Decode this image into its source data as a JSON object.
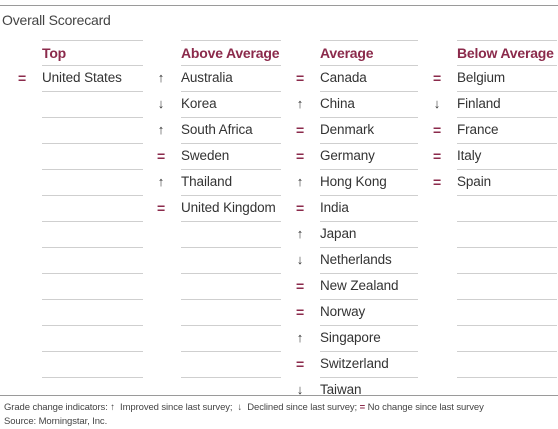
{
  "title": "Overall Scorecard",
  "symbols": {
    "up": "↑",
    "down": "↓",
    "same": "="
  },
  "columns": [
    {
      "key": "top",
      "header": "Top",
      "total_rows": 13,
      "rows": [
        {
          "country": "United States",
          "change": "same"
        }
      ]
    },
    {
      "key": "above",
      "header": "Above Average",
      "total_rows": 13,
      "rows": [
        {
          "country": "Australia",
          "change": "up"
        },
        {
          "country": "Korea",
          "change": "down"
        },
        {
          "country": "South Africa",
          "change": "up"
        },
        {
          "country": "Sweden",
          "change": "same"
        },
        {
          "country": "Thailand",
          "change": "up"
        },
        {
          "country": "United Kingdom",
          "change": "same"
        }
      ]
    },
    {
      "key": "average",
      "header": "Average",
      "total_rows": 13,
      "rows": [
        {
          "country": "Canada",
          "change": "same"
        },
        {
          "country": "China",
          "change": "up"
        },
        {
          "country": "Denmark",
          "change": "same"
        },
        {
          "country": "Germany",
          "change": "same"
        },
        {
          "country": "Hong Kong",
          "change": "up"
        },
        {
          "country": "India",
          "change": "same"
        },
        {
          "country": "Japan",
          "change": "up"
        },
        {
          "country": "Netherlands",
          "change": "down"
        },
        {
          "country": "New Zealand",
          "change": "same"
        },
        {
          "country": "Norway",
          "change": "same"
        },
        {
          "country": "Singapore",
          "change": "up"
        },
        {
          "country": "Switzerland",
          "change": "same"
        },
        {
          "country": "Taiwan",
          "change": "down"
        }
      ]
    },
    {
      "key": "below",
      "header": "Below Average",
      "total_rows": 13,
      "rows": [
        {
          "country": "Belgium",
          "change": "same"
        },
        {
          "country": "Finland",
          "change": "down"
        },
        {
          "country": "France",
          "change": "same"
        },
        {
          "country": "Italy",
          "change": "same"
        },
        {
          "country": "Spain",
          "change": "same"
        }
      ]
    }
  ],
  "legend": {
    "prefix": "Grade change indicators: ",
    "improved": "Improved since last survey;",
    "declined": "Declined since last survey;",
    "same": "No change since last survey"
  },
  "source": "Source: Morningstar, Inc.",
  "colors": {
    "accent": "#8b2a4b",
    "rule": "#cfcfcf"
  }
}
